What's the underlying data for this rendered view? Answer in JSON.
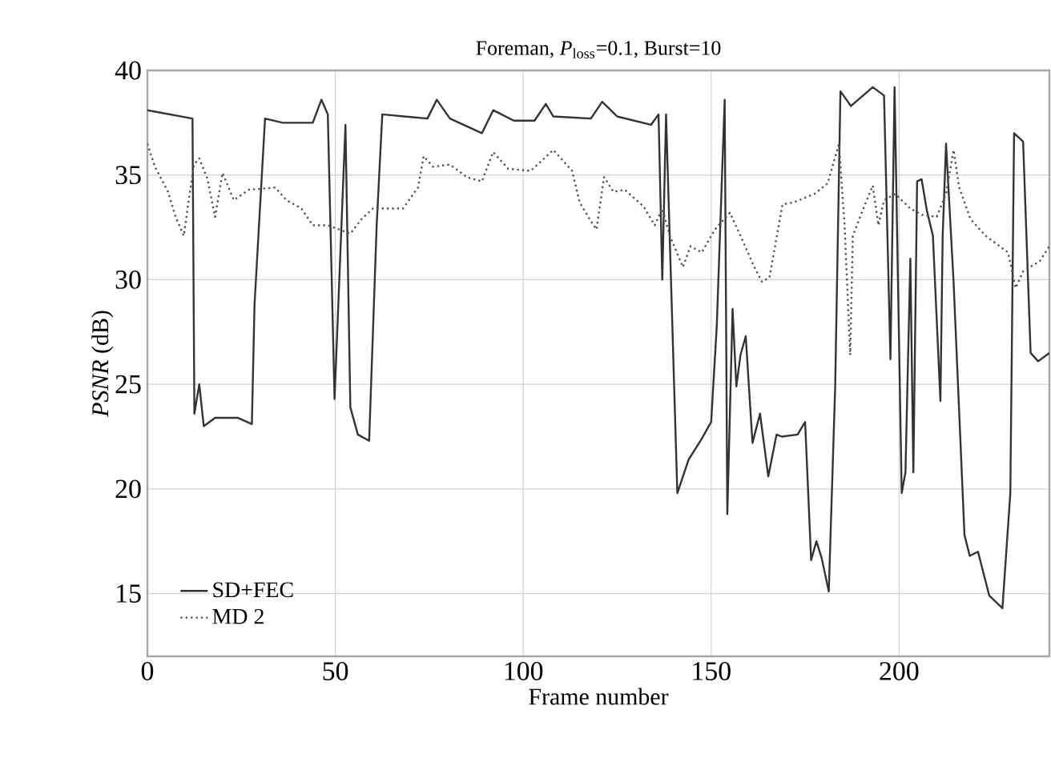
{
  "chart_data": {
    "type": "line",
    "title": "Foreman, *P*$_{loss}$=0.1, Burst=10",
    "xlabel": "Frame number",
    "ylabel": "*PSNR* (dB)",
    "xlim": [
      0,
      240
    ],
    "ylim": [
      12,
      40
    ],
    "xticks": [
      0,
      50,
      100,
      150,
      200
    ],
    "yticks": [
      15,
      20,
      25,
      30,
      35,
      40
    ],
    "grid": true,
    "legend": "bottom left",
    "marker": "none",
    "series": [
      {
        "name": "SD+FEC",
        "color": "#333333",
        "line_style": "solid",
        "x": [
          0,
          12,
          12.5,
          13.8,
          15,
          18,
          24,
          27.8,
          28.5,
          31.3,
          36,
          44,
          46.3,
          48,
          49.8,
          52.7,
          54,
          56,
          59,
          61,
          62.5,
          74.5,
          77,
          80.5,
          89,
          92,
          97.5,
          103,
          106,
          108,
          118,
          121,
          125,
          134,
          136,
          137,
          138,
          141,
          144,
          147.5,
          150,
          151.5,
          153.6,
          154.3,
          155.7,
          156.7,
          157.8,
          159.2,
          161,
          163,
          165.2,
          167.4,
          168.8,
          173,
          175,
          176.6,
          178,
          179.4,
          181.3,
          183,
          184.4,
          187.2,
          193,
          196,
          197.7,
          198.8,
          200.7,
          201.7,
          203,
          203.8,
          204.8,
          206,
          207.4,
          209,
          211,
          211.6,
          212.5,
          214.5,
          217.4,
          218.8,
          221,
          224,
          227.5,
          229.6,
          230.6,
          233,
          235,
          237,
          240
        ],
        "values": [
          38.1,
          37.7,
          23.6,
          25.0,
          23.0,
          23.4,
          23.4,
          23.1,
          28.8,
          37.7,
          37.5,
          37.5,
          38.6,
          37.9,
          24.3,
          37.4,
          23.9,
          22.6,
          22.3,
          32.6,
          37.9,
          37.7,
          38.6,
          37.7,
          37.0,
          38.1,
          37.6,
          37.6,
          38.4,
          37.8,
          37.7,
          38.5,
          37.8,
          37.4,
          37.9,
          30.0,
          37.9,
          19.8,
          21.4,
          22.4,
          23.2,
          27.8,
          38.6,
          18.8,
          28.6,
          24.9,
          26.4,
          27.3,
          22.2,
          23.6,
          20.6,
          22.6,
          22.5,
          22.6,
          23.2,
          16.6,
          17.5,
          16.7,
          15.1,
          24.9,
          39.0,
          38.3,
          39.2,
          38.8,
          26.2,
          39.2,
          19.8,
          20.8,
          31.0,
          20.8,
          34.7,
          34.8,
          33.3,
          32.1,
          24.2,
          32.1,
          36.5,
          29.9,
          17.8,
          16.8,
          17.0,
          14.9,
          14.3,
          19.8,
          37.0,
          36.6,
          26.5,
          26.1,
          26.5
        ]
      },
      {
        "name": "MD 2",
        "color": "#555555",
        "line_style": "dotted",
        "x": [
          0,
          2,
          5.5,
          7.5,
          9.7,
          11,
          12.4,
          13.8,
          16,
          18,
          20,
          23,
          27,
          34,
          37,
          41,
          44,
          48,
          54,
          57,
          60,
          68,
          72,
          73.5,
          76,
          80.5,
          85,
          89,
          92,
          96,
          102,
          108,
          113,
          115,
          118,
          119.5,
          121.5,
          124,
          127,
          132,
          135,
          137,
          139,
          142.5,
          144.5,
          147.5,
          151,
          155,
          157.8,
          161.5,
          163.5,
          165.5,
          169,
          172,
          177.5,
          181,
          184,
          185.5,
          187,
          187.7,
          190.5,
          193,
          194.5,
          196,
          199,
          203,
          206,
          210,
          212.5,
          214.5,
          216,
          219,
          223,
          229,
          231,
          233,
          237.5,
          240
        ],
        "values": [
          36.5,
          35.4,
          34.2,
          33.0,
          32.1,
          33.8,
          35.5,
          35.8,
          34.8,
          33.0,
          35.1,
          33.8,
          34.3,
          34.4,
          33.8,
          33.4,
          32.6,
          32.6,
          32.2,
          32.9,
          33.4,
          33.4,
          34.4,
          35.9,
          35.4,
          35.5,
          34.9,
          34.7,
          36.1,
          35.3,
          35.2,
          36.2,
          35.2,
          33.7,
          32.8,
          32.4,
          34.9,
          34.2,
          34.3,
          33.5,
          32.6,
          33.4,
          32.1,
          30.6,
          31.6,
          31.3,
          32.4,
          33.2,
          32.1,
          30.6,
          29.9,
          30.1,
          33.6,
          33.7,
          34.1,
          34.6,
          36.5,
          32.6,
          26.4,
          32.1,
          33.4,
          34.5,
          32.6,
          33.8,
          34.1,
          33.4,
          33.1,
          33.0,
          34.1,
          36.2,
          34.4,
          32.9,
          32.1,
          31.3,
          29.6,
          30.4,
          30.9,
          31.6
        ]
      }
    ]
  }
}
